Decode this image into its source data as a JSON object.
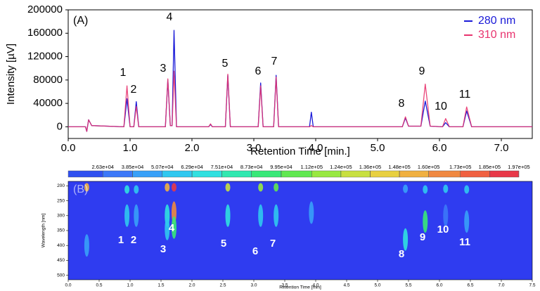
{
  "chart_data": [
    {
      "type": "line",
      "panel": "(A)",
      "xlabel": "Retention Time [min.]",
      "ylabel": "Intensity [µV]",
      "x": [
        0,
        0.28,
        0.3,
        0.33,
        0.38,
        0.9,
        0.95,
        1.0,
        1.06,
        1.1,
        1.14,
        1.57,
        1.61,
        1.65,
        1.68,
        1.71,
        1.75,
        2.27,
        2.3,
        2.33,
        2.54,
        2.58,
        2.62,
        3.07,
        3.11,
        3.15,
        3.32,
        3.36,
        3.4,
        3.9,
        3.93,
        3.96,
        5.4,
        5.45,
        5.5,
        5.7,
        5.77,
        5.85,
        6.05,
        6.1,
        6.16,
        6.38,
        6.44,
        6.52,
        7.5
      ],
      "series": [
        {
          "name": "280 nm",
          "color": "#1a1ad8",
          "values": [
            0,
            0,
            -8000,
            12000,
            2000,
            0,
            48000,
            0,
            0,
            43000,
            0,
            0,
            80000,
            2000,
            2000,
            165000,
            0,
            0,
            4000,
            0,
            0,
            88000,
            0,
            0,
            75000,
            0,
            0,
            88000,
            0,
            0,
            25000,
            0,
            0,
            15000,
            1000,
            1000,
            44000,
            1000,
            0,
            7000,
            0,
            0,
            27000,
            0,
            0
          ]
        },
        {
          "name": "310 nm",
          "color": "#e8336e",
          "values": [
            0,
            0,
            -8000,
            12000,
            2000,
            0,
            70000,
            0,
            0,
            35000,
            0,
            0,
            82000,
            2000,
            2000,
            95000,
            0,
            0,
            5000,
            0,
            0,
            90000,
            0,
            0,
            70000,
            0,
            0,
            85000,
            0,
            0,
            2000,
            0,
            0,
            17000,
            1000,
            1000,
            73000,
            1000,
            0,
            14000,
            0,
            0,
            34000,
            0,
            0
          ]
        }
      ],
      "annotations": [
        "1",
        "2",
        "3",
        "4",
        "5",
        "6",
        "7",
        "8",
        "9",
        "10",
        "11"
      ],
      "xlim": [
        0,
        7.5
      ],
      "ylim": [
        -20000,
        200000
      ],
      "xticks": [
        {
          "value": 0,
          "label": "0.0"
        },
        {
          "value": 1,
          "label": "1.0"
        },
        {
          "value": 2,
          "label": "2.0"
        },
        {
          "value": 3,
          "label": "3.0"
        },
        {
          "value": 4,
          "label": "4.0"
        },
        {
          "value": 5,
          "label": "5.0"
        },
        {
          "value": 6,
          "label": "6.0"
        },
        {
          "value": 7,
          "label": "7.0"
        }
      ],
      "yticks": [
        0,
        40000,
        80000,
        120000,
        160000,
        200000
      ],
      "legend": "upper right"
    },
    {
      "type": "heatmap",
      "panel": "(B)",
      "xlabel": "Retention Time [min]",
      "ylabel": "Wavelength [nm]",
      "xlim": [
        0,
        7.5
      ],
      "ylim": [
        185,
        515
      ],
      "xticks": [
        {
          "value": 0,
          "label": "0.0"
        },
        0.5,
        {
          "value": 1,
          "label": "1.0"
        },
        1.5,
        {
          "value": 2,
          "label": "2.0"
        },
        2.5,
        {
          "value": 3,
          "label": "3.0"
        },
        3.5,
        {
          "value": 4,
          "label": "4.0"
        },
        4.5,
        {
          "value": 5,
          "label": "5.0"
        },
        5.5,
        {
          "value": 6,
          "label": "6.0"
        },
        6.5,
        {
          "value": 7,
          "label": "7.0"
        },
        7.5
      ],
      "yticks": [
        200,
        250,
        300,
        350,
        400,
        450,
        500
      ],
      "background": "#2f3cf0",
      "clim": [
        12100,
        202500
      ],
      "colorbar_ticks": [
        {
          "value": 26300,
          "label": "2.63e+04"
        },
        {
          "value": 38500,
          "label": "3.85e+04"
        },
        {
          "value": 50700,
          "label": "5.07e+04"
        },
        {
          "value": 62900,
          "label": "6.29e+04"
        },
        {
          "value": 75100,
          "label": "7.51e+04"
        },
        {
          "value": 87300,
          "label": "8.73e+04"
        },
        {
          "value": 99500,
          "label": "9.95e+04"
        },
        {
          "value": 112000,
          "label": "1.12e+05"
        },
        {
          "value": 124000,
          "label": "1.24e+05"
        },
        {
          "value": 136000,
          "label": "1.36e+05"
        },
        {
          "value": 148000,
          "label": "1.48e+05"
        },
        {
          "value": 160000,
          "label": "1.60e+05"
        },
        {
          "value": 173000,
          "label": "1.73e+05"
        },
        {
          "value": 185000,
          "label": "1.85e+05"
        },
        {
          "value": 197000,
          "label": "1.97e+05"
        }
      ],
      "colors": [
        "#3050f0",
        "#3c78f8",
        "#38a0f8",
        "#30c8f0",
        "#30e0e0",
        "#30e8b0",
        "#38e878",
        "#60e850",
        "#98e840",
        "#c8e040",
        "#e8d040",
        "#f0b040",
        "#f08840",
        "#f06040",
        "#e83848"
      ],
      "spots": [
        {
          "x": 0.3,
          "y": 205,
          "value": 150000
        },
        {
          "x": 0.3,
          "y": 400,
          "value": 40000
        },
        {
          "x": 0.95,
          "y": 212,
          "value": 70000
        },
        {
          "x": 0.95,
          "y": 300,
          "value": 60000
        },
        {
          "x": 1.1,
          "y": 212,
          "value": 60000
        },
        {
          "x": 1.1,
          "y": 300,
          "value": 45000
        },
        {
          "x": 1.6,
          "y": 205,
          "value": 150000
        },
        {
          "x": 1.6,
          "y": 300,
          "value": 70000
        },
        {
          "x": 1.6,
          "y": 345,
          "value": 60000
        },
        {
          "x": 1.71,
          "y": 205,
          "value": 190000
        },
        {
          "x": 1.71,
          "y": 290,
          "value": 170000
        },
        {
          "x": 1.71,
          "y": 340,
          "value": 90000
        },
        {
          "x": 2.58,
          "y": 205,
          "value": 130000
        },
        {
          "x": 2.58,
          "y": 300,
          "value": 70000
        },
        {
          "x": 3.11,
          "y": 205,
          "value": 120000
        },
        {
          "x": 3.11,
          "y": 300,
          "value": 60000
        },
        {
          "x": 3.36,
          "y": 205,
          "value": 110000
        },
        {
          "x": 3.36,
          "y": 300,
          "value": 55000
        },
        {
          "x": 3.93,
          "y": 290,
          "value": 40000
        },
        {
          "x": 5.45,
          "y": 210,
          "value": 40000
        },
        {
          "x": 5.45,
          "y": 380,
          "value": 70000
        },
        {
          "x": 5.77,
          "y": 212,
          "value": 60000
        },
        {
          "x": 5.77,
          "y": 320,
          "value": 90000
        },
        {
          "x": 6.1,
          "y": 210,
          "value": 60000
        },
        {
          "x": 6.1,
          "y": 300,
          "value": 35000
        },
        {
          "x": 6.44,
          "y": 212,
          "value": 60000
        },
        {
          "x": 6.44,
          "y": 320,
          "value": 45000
        }
      ]
    }
  ]
}
